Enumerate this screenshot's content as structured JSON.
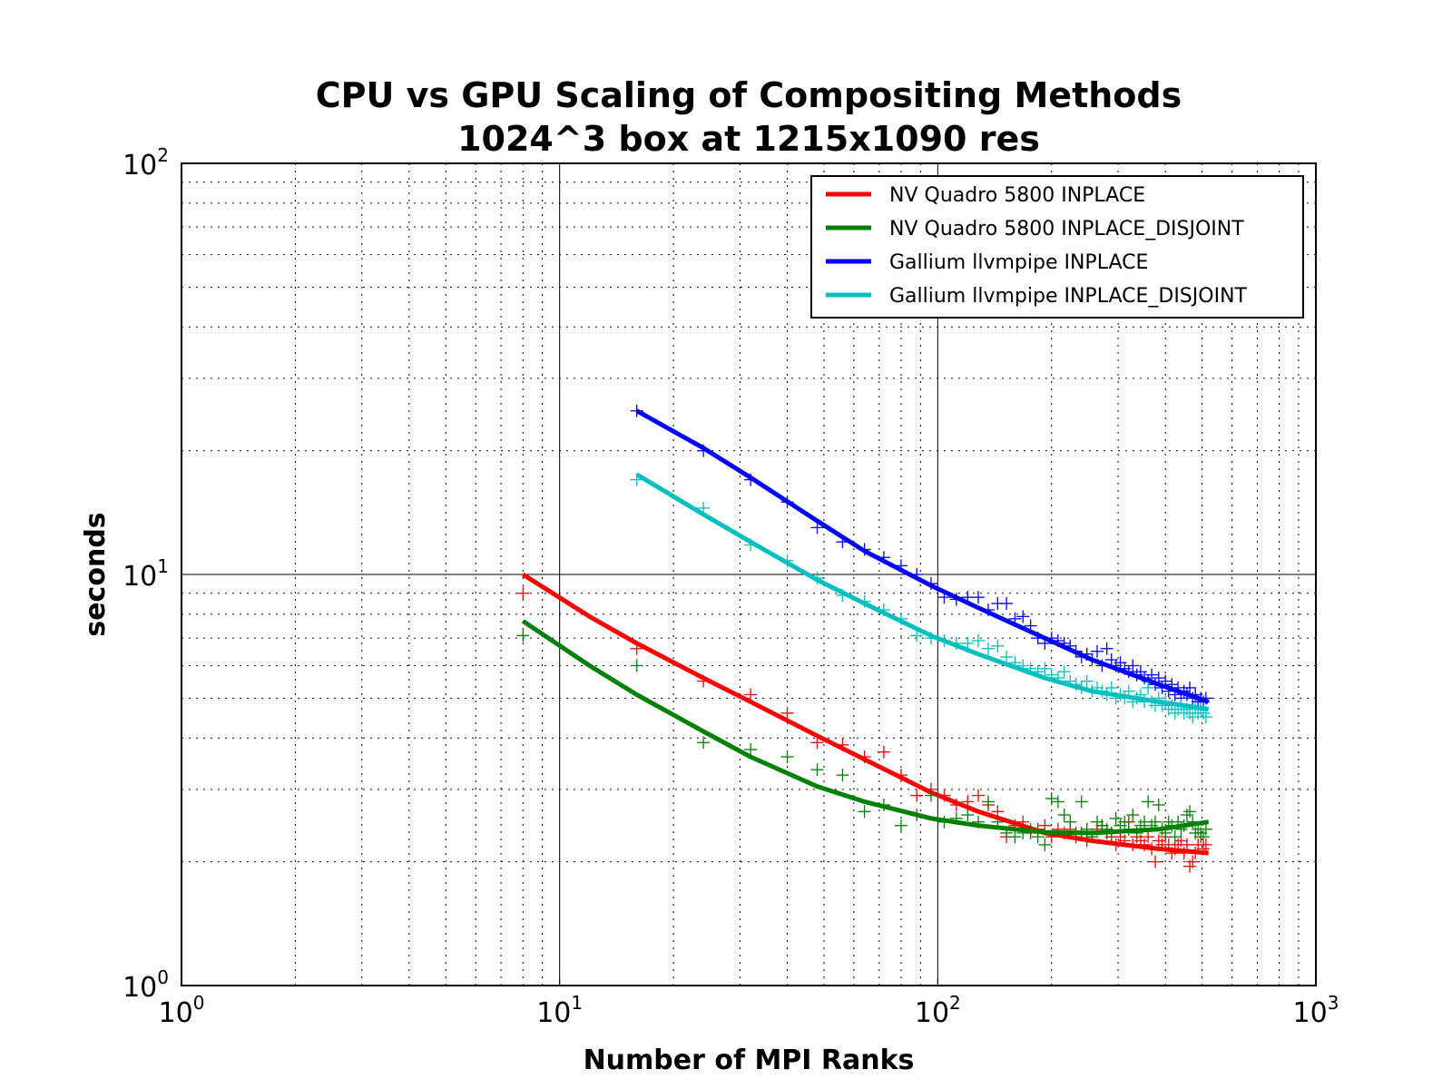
{
  "chart_data": {
    "type": "scatter",
    "title": "CPU vs GPU Scaling of Compositing Methods",
    "subtitle": "1024^3 box at 1215x1090 res",
    "xlabel": "Number of MPI Ranks",
    "ylabel": "seconds",
    "xscale": "log",
    "yscale": "log",
    "xlim": [
      1,
      1000
    ],
    "ylim": [
      1,
      100
    ],
    "grid": true,
    "legend_position": "top-right",
    "x_ticks": [
      {
        "base": "10",
        "exp": "0",
        "value": 1
      },
      {
        "base": "10",
        "exp": "1",
        "value": 10
      },
      {
        "base": "10",
        "exp": "2",
        "value": 100
      },
      {
        "base": "10",
        "exp": "3",
        "value": 1000
      }
    ],
    "y_ticks": [
      {
        "base": "10",
        "exp": "0",
        "value": 1
      },
      {
        "base": "10",
        "exp": "1",
        "value": 10
      },
      {
        "base": "10",
        "exp": "2",
        "value": 100
      }
    ],
    "series": [
      {
        "name": "NV Quadro 5800 INPLACE",
        "color": "#ff0000",
        "marker": "plus",
        "points": [
          [
            8,
            9.0
          ],
          [
            16,
            6.6
          ],
          [
            24,
            5.5
          ],
          [
            32,
            5.1
          ],
          [
            40,
            4.6
          ],
          [
            48,
            3.9
          ],
          [
            56,
            3.85
          ],
          [
            64,
            3.6
          ],
          [
            72,
            3.7
          ],
          [
            80,
            3.25
          ],
          [
            88,
            2.9
          ],
          [
            96,
            3.0
          ],
          [
            104,
            2.9
          ],
          [
            112,
            2.75
          ],
          [
            120,
            2.8
          ],
          [
            128,
            2.9
          ],
          [
            136,
            2.75
          ],
          [
            144,
            2.65
          ],
          [
            152,
            2.3
          ],
          [
            160,
            2.45
          ],
          [
            168,
            2.5
          ],
          [
            176,
            2.35
          ],
          [
            184,
            2.4
          ],
          [
            192,
            2.45
          ],
          [
            200,
            2.3
          ],
          [
            208,
            2.4
          ],
          [
            216,
            2.35
          ],
          [
            224,
            2.4
          ],
          [
            232,
            2.3
          ],
          [
            240,
            2.35
          ],
          [
            248,
            2.25
          ],
          [
            256,
            2.3
          ],
          [
            264,
            2.4
          ],
          [
            272,
            2.45
          ],
          [
            280,
            2.35
          ],
          [
            288,
            2.3
          ],
          [
            296,
            2.2
          ],
          [
            304,
            2.3
          ],
          [
            312,
            2.25
          ],
          [
            320,
            2.5
          ],
          [
            328,
            2.2
          ],
          [
            336,
            2.3
          ],
          [
            344,
            2.25
          ],
          [
            352,
            2.2
          ],
          [
            360,
            2.3
          ],
          [
            368,
            2.15
          ],
          [
            376,
            2.0
          ],
          [
            384,
            2.25
          ],
          [
            392,
            2.2
          ],
          [
            400,
            2.3
          ],
          [
            408,
            2.2
          ],
          [
            416,
            2.1
          ],
          [
            424,
            2.15
          ],
          [
            432,
            2.2
          ],
          [
            440,
            2.25
          ],
          [
            448,
            2.1
          ],
          [
            456,
            2.2
          ],
          [
            464,
            1.95
          ],
          [
            472,
            2.0
          ],
          [
            480,
            2.1
          ],
          [
            488,
            2.2
          ],
          [
            496,
            2.3
          ],
          [
            504,
            2.15
          ],
          [
            512,
            2.2
          ]
        ],
        "fit": [
          [
            8,
            10.0
          ],
          [
            12,
            7.9
          ],
          [
            16,
            6.8
          ],
          [
            24,
            5.6
          ],
          [
            32,
            4.9
          ],
          [
            48,
            4.05
          ],
          [
            64,
            3.55
          ],
          [
            96,
            2.95
          ],
          [
            128,
            2.65
          ],
          [
            192,
            2.35
          ],
          [
            256,
            2.25
          ],
          [
            384,
            2.15
          ],
          [
            520,
            2.1
          ]
        ]
      },
      {
        "name": "NV Quadro 5800 INPLACE_DISJOINT",
        "color": "#008000",
        "marker": "plus",
        "points": [
          [
            8,
            7.1
          ],
          [
            16,
            6.0
          ],
          [
            24,
            3.9
          ],
          [
            32,
            3.75
          ],
          [
            40,
            3.6
          ],
          [
            48,
            3.35
          ],
          [
            56,
            3.25
          ],
          [
            64,
            2.65
          ],
          [
            72,
            2.75
          ],
          [
            80,
            2.45
          ],
          [
            88,
            2.6
          ],
          [
            96,
            2.9
          ],
          [
            104,
            2.5
          ],
          [
            112,
            2.55
          ],
          [
            120,
            2.6
          ],
          [
            128,
            2.5
          ],
          [
            136,
            2.8
          ],
          [
            144,
            2.5
          ],
          [
            152,
            2.35
          ],
          [
            160,
            2.3
          ],
          [
            168,
            2.35
          ],
          [
            176,
            2.4
          ],
          [
            184,
            2.3
          ],
          [
            192,
            2.2
          ],
          [
            200,
            2.85
          ],
          [
            208,
            2.8
          ],
          [
            216,
            2.6
          ],
          [
            224,
            2.5
          ],
          [
            232,
            2.35
          ],
          [
            240,
            2.8
          ],
          [
            248,
            2.4
          ],
          [
            256,
            2.3
          ],
          [
            264,
            2.5
          ],
          [
            272,
            2.45
          ],
          [
            280,
            2.4
          ],
          [
            288,
            2.35
          ],
          [
            296,
            2.55
          ],
          [
            304,
            2.45
          ],
          [
            312,
            2.5
          ],
          [
            320,
            2.4
          ],
          [
            328,
            2.6
          ],
          [
            336,
            2.35
          ],
          [
            344,
            2.45
          ],
          [
            352,
            2.5
          ],
          [
            360,
            2.8
          ],
          [
            368,
            2.45
          ],
          [
            376,
            2.5
          ],
          [
            384,
            2.75
          ],
          [
            392,
            2.4
          ],
          [
            400,
            2.35
          ],
          [
            408,
            2.5
          ],
          [
            416,
            2.45
          ],
          [
            424,
            2.3
          ],
          [
            432,
            2.5
          ],
          [
            440,
            2.4
          ],
          [
            448,
            2.45
          ],
          [
            456,
            2.6
          ],
          [
            464,
            2.65
          ],
          [
            472,
            2.5
          ],
          [
            480,
            2.35
          ],
          [
            488,
            2.4
          ],
          [
            496,
            2.35
          ],
          [
            504,
            2.3
          ],
          [
            512,
            2.4
          ]
        ],
        "fit": [
          [
            8,
            7.7
          ],
          [
            12,
            6.0
          ],
          [
            16,
            5.1
          ],
          [
            24,
            4.15
          ],
          [
            32,
            3.6
          ],
          [
            48,
            3.05
          ],
          [
            64,
            2.8
          ],
          [
            96,
            2.55
          ],
          [
            128,
            2.45
          ],
          [
            192,
            2.36
          ],
          [
            256,
            2.35
          ],
          [
            384,
            2.4
          ],
          [
            520,
            2.5
          ]
        ]
      },
      {
        "name": "Gallium llvmpipe INPLACE",
        "color": "#0000ff",
        "marker": "plus",
        "points": [
          [
            16,
            25.0
          ],
          [
            24,
            20.0
          ],
          [
            32,
            17.0
          ],
          [
            40,
            15.0
          ],
          [
            48,
            13.0
          ],
          [
            56,
            12.0
          ],
          [
            64,
            11.5
          ],
          [
            72,
            11.0
          ],
          [
            80,
            10.5
          ],
          [
            88,
            10.0
          ],
          [
            96,
            9.5
          ],
          [
            104,
            8.8
          ],
          [
            112,
            8.7
          ],
          [
            120,
            8.8
          ],
          [
            128,
            8.8
          ],
          [
            136,
            8.2
          ],
          [
            144,
            8.5
          ],
          [
            152,
            8.5
          ],
          [
            160,
            7.8
          ],
          [
            168,
            7.9
          ],
          [
            176,
            7.5
          ],
          [
            184,
            7.0
          ],
          [
            192,
            6.8
          ],
          [
            200,
            7.0
          ],
          [
            208,
            6.9
          ],
          [
            216,
            6.8
          ],
          [
            224,
            6.7
          ],
          [
            232,
            6.5
          ],
          [
            240,
            6.3
          ],
          [
            248,
            6.4
          ],
          [
            256,
            6.2
          ],
          [
            264,
            6.5
          ],
          [
            272,
            6.0
          ],
          [
            280,
            6.6
          ],
          [
            288,
            6.2
          ],
          [
            296,
            6.0
          ],
          [
            304,
            6.1
          ],
          [
            312,
            5.9
          ],
          [
            320,
            5.8
          ],
          [
            328,
            6.0
          ],
          [
            336,
            5.7
          ],
          [
            344,
            5.8
          ],
          [
            352,
            5.6
          ],
          [
            360,
            5.5
          ],
          [
            368,
            5.7
          ],
          [
            376,
            5.4
          ],
          [
            384,
            5.6
          ],
          [
            392,
            5.3
          ],
          [
            400,
            5.5
          ],
          [
            408,
            5.2
          ],
          [
            416,
            5.4
          ],
          [
            424,
            5.1
          ],
          [
            432,
            5.3
          ],
          [
            440,
            5.0
          ],
          [
            448,
            5.2
          ],
          [
            456,
            5.1
          ],
          [
            464,
            5.3
          ],
          [
            472,
            5.0
          ],
          [
            480,
            5.1
          ],
          [
            488,
            4.9
          ],
          [
            496,
            5.0
          ],
          [
            504,
            4.9
          ],
          [
            512,
            5.0
          ]
        ],
        "fit": [
          [
            16,
            25.0
          ],
          [
            24,
            20.3
          ],
          [
            32,
            17.2
          ],
          [
            48,
            13.5
          ],
          [
            64,
            11.4
          ],
          [
            96,
            9.4
          ],
          [
            128,
            8.3
          ],
          [
            192,
            7.0
          ],
          [
            256,
            6.2
          ],
          [
            384,
            5.4
          ],
          [
            520,
            4.9
          ]
        ]
      },
      {
        "name": "Gallium llvmpipe INPLACE_DISJOINT",
        "color": "#00bfbf",
        "marker": "plus",
        "points": [
          [
            16,
            17.0
          ],
          [
            24,
            14.5
          ],
          [
            32,
            11.8
          ],
          [
            40,
            10.8
          ],
          [
            48,
            9.8
          ],
          [
            56,
            8.9
          ],
          [
            64,
            8.6
          ],
          [
            72,
            8.2
          ],
          [
            80,
            7.8
          ],
          [
            88,
            7.1
          ],
          [
            96,
            7.0
          ],
          [
            104,
            6.9
          ],
          [
            112,
            6.8
          ],
          [
            120,
            6.8
          ],
          [
            128,
            6.9
          ],
          [
            136,
            6.6
          ],
          [
            144,
            6.7
          ],
          [
            152,
            6.3
          ],
          [
            160,
            6.1
          ],
          [
            168,
            6.0
          ],
          [
            176,
            5.9
          ],
          [
            184,
            5.8
          ],
          [
            192,
            5.9
          ],
          [
            200,
            5.7
          ],
          [
            208,
            5.6
          ],
          [
            216,
            5.8
          ],
          [
            224,
            5.5
          ],
          [
            232,
            5.4
          ],
          [
            240,
            5.3
          ],
          [
            248,
            5.5
          ],
          [
            256,
            5.2
          ],
          [
            264,
            5.3
          ],
          [
            272,
            5.2
          ],
          [
            280,
            5.1
          ],
          [
            288,
            5.3
          ],
          [
            296,
            5.0
          ],
          [
            304,
            5.1
          ],
          [
            312,
            5.0
          ],
          [
            320,
            5.2
          ],
          [
            328,
            4.9
          ],
          [
            336,
            5.0
          ],
          [
            344,
            5.1
          ],
          [
            352,
            4.9
          ],
          [
            360,
            5.3
          ],
          [
            368,
            4.9
          ],
          [
            376,
            4.8
          ],
          [
            384,
            5.0
          ],
          [
            392,
            4.8
          ],
          [
            400,
            4.9
          ],
          [
            408,
            4.7
          ],
          [
            416,
            4.8
          ],
          [
            424,
            4.6
          ],
          [
            432,
            4.7
          ],
          [
            440,
            4.8
          ],
          [
            448,
            4.6
          ],
          [
            456,
            4.7
          ],
          [
            464,
            4.6
          ],
          [
            472,
            4.5
          ],
          [
            480,
            4.7
          ],
          [
            488,
            4.6
          ],
          [
            496,
            4.7
          ],
          [
            504,
            4.6
          ],
          [
            512,
            4.5
          ]
        ],
        "fit": [
          [
            16,
            17.5
          ],
          [
            24,
            14.0
          ],
          [
            32,
            12.0
          ],
          [
            48,
            9.7
          ],
          [
            64,
            8.5
          ],
          [
            96,
            7.1
          ],
          [
            128,
            6.4
          ],
          [
            192,
            5.6
          ],
          [
            256,
            5.2
          ],
          [
            384,
            4.9
          ],
          [
            520,
            4.7
          ]
        ]
      }
    ]
  }
}
